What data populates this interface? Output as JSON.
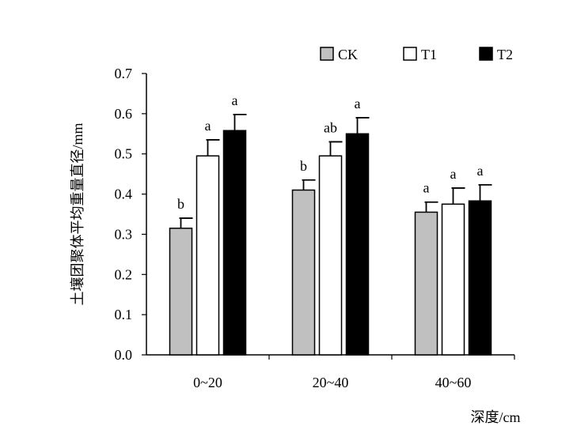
{
  "chart_data": {
    "type": "bar",
    "categories": [
      "0~20",
      "20~40",
      "40~60"
    ],
    "series": [
      {
        "name": "CK",
        "color": "#c0c0c0",
        "values": [
          0.315,
          0.41,
          0.355
        ],
        "errors": [
          0.025,
          0.025,
          0.025
        ],
        "labels": [
          "b",
          "b",
          "a"
        ]
      },
      {
        "name": "T1",
        "color": "#ffffff",
        "values": [
          0.495,
          0.495,
          0.375
        ],
        "errors": [
          0.04,
          0.035,
          0.04
        ],
        "labels": [
          "a",
          "ab",
          "a"
        ]
      },
      {
        "name": "T2",
        "color": "#000000",
        "values": [
          0.558,
          0.55,
          0.383
        ],
        "errors": [
          0.04,
          0.04,
          0.04
        ],
        "labels": [
          "a",
          "a",
          "a"
        ]
      }
    ],
    "ylabel": "土壤团聚体平均重量直径/mm",
    "xlabel": "深度/cm",
    "ylim": [
      0,
      0.7
    ],
    "yticks": [
      "0.0",
      "0.1",
      "0.2",
      "0.3",
      "0.4",
      "0.5",
      "0.6",
      "0.7"
    ],
    "grid": false,
    "legend_position": "top-right"
  }
}
